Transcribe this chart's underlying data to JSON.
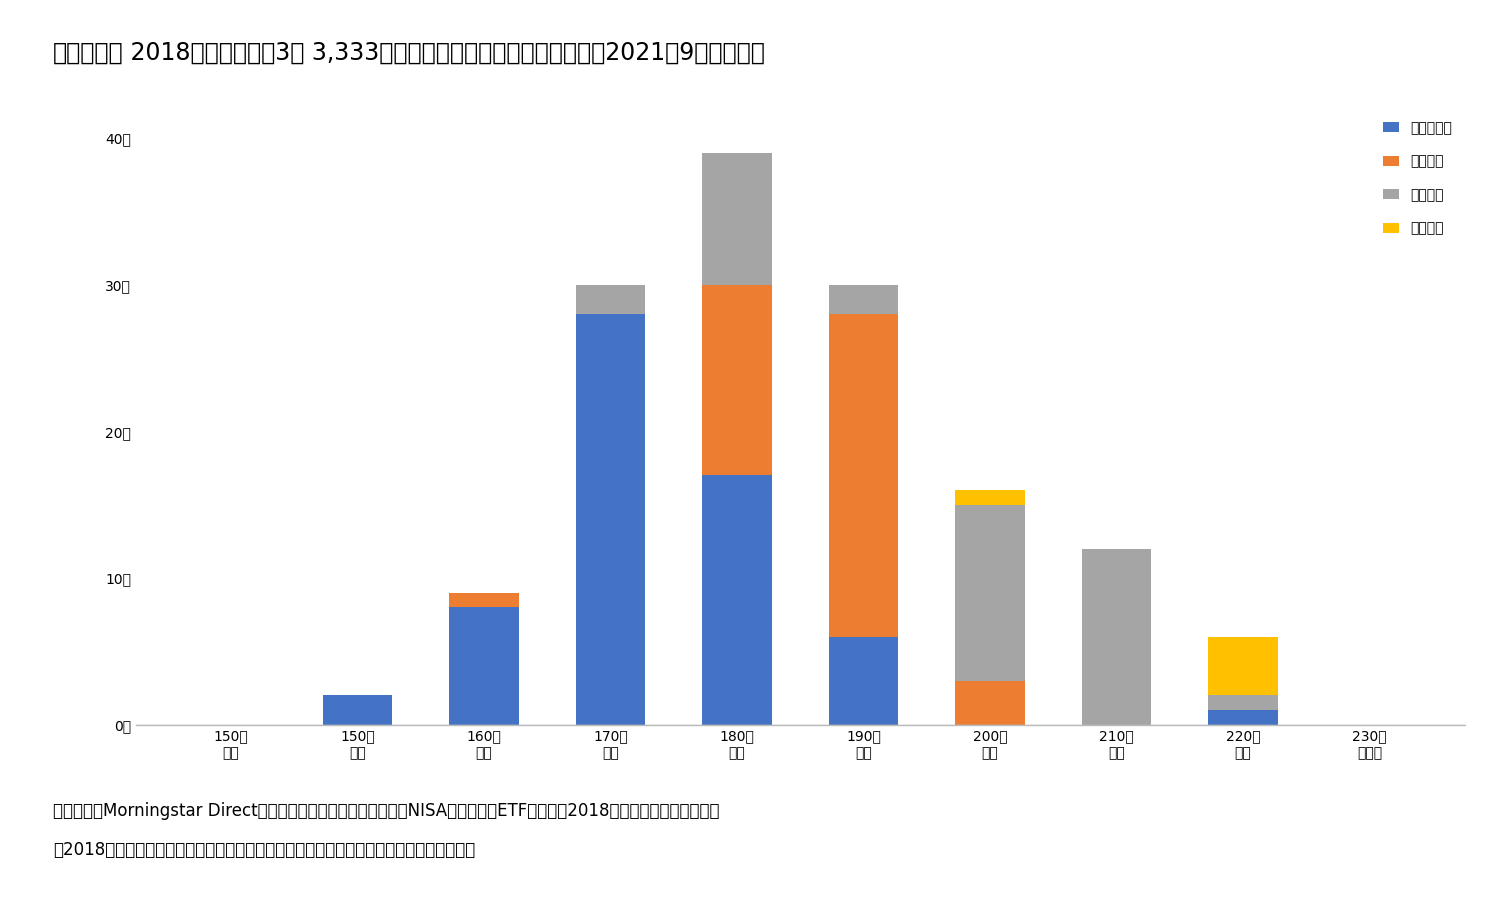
{
  "title_bold": "【図表２】",
  "title_normal": " 2018年から毎月初3万 3,333円買付した場合の対象商品の分布（2021年9月末時点）",
  "categories": [
    "150万\n未満",
    "150万\n円台",
    "160万\n円台",
    "170万\n円台",
    "180万\n円台",
    "190万\n円台",
    "200万\n円台",
    "210万\n円台",
    "220万\n円台",
    "230万\n円以上"
  ],
  "balance": [
    0,
    2,
    8,
    28,
    17,
    6,
    0,
    0,
    1,
    0
  ],
  "domestic": [
    0,
    0,
    1,
    0,
    13,
    22,
    3,
    0,
    0,
    0
  ],
  "foreign": [
    0,
    0,
    0,
    2,
    9,
    2,
    12,
    12,
    1,
    0
  ],
  "us": [
    0,
    0,
    0,
    0,
    0,
    0,
    1,
    0,
    4,
    0
  ],
  "balance_color": "#4472C4",
  "domestic_color": "#ED7D31",
  "foreign_color": "#A5A5A5",
  "us_color": "#FFC000",
  "legend_labels": [
    "バランス型",
    "国内株式",
    "外国株式",
    "米国株式"
  ],
  "yticks": [
    0,
    10,
    20,
    30,
    40
  ],
  "ytick_labels": [
    "0本",
    "10本",
    "20本",
    "30本",
    "40本"
  ],
  "ylim": [
    0,
    42
  ],
  "footnote1": "（資料）　Morningstar Directより作成。　分析時点のつみたてNISA対象商品（ETFや設定が2018年以降のものは除く）。",
  "footnote2": "　2018年時点では対象商品に含まれていなかったものを含む。イボットソン分類で分類。",
  "background_color": "#FFFFFF",
  "title_fontsize": 17,
  "legend_fontsize": 14,
  "tick_fontsize": 12,
  "footnote_fontsize": 12
}
